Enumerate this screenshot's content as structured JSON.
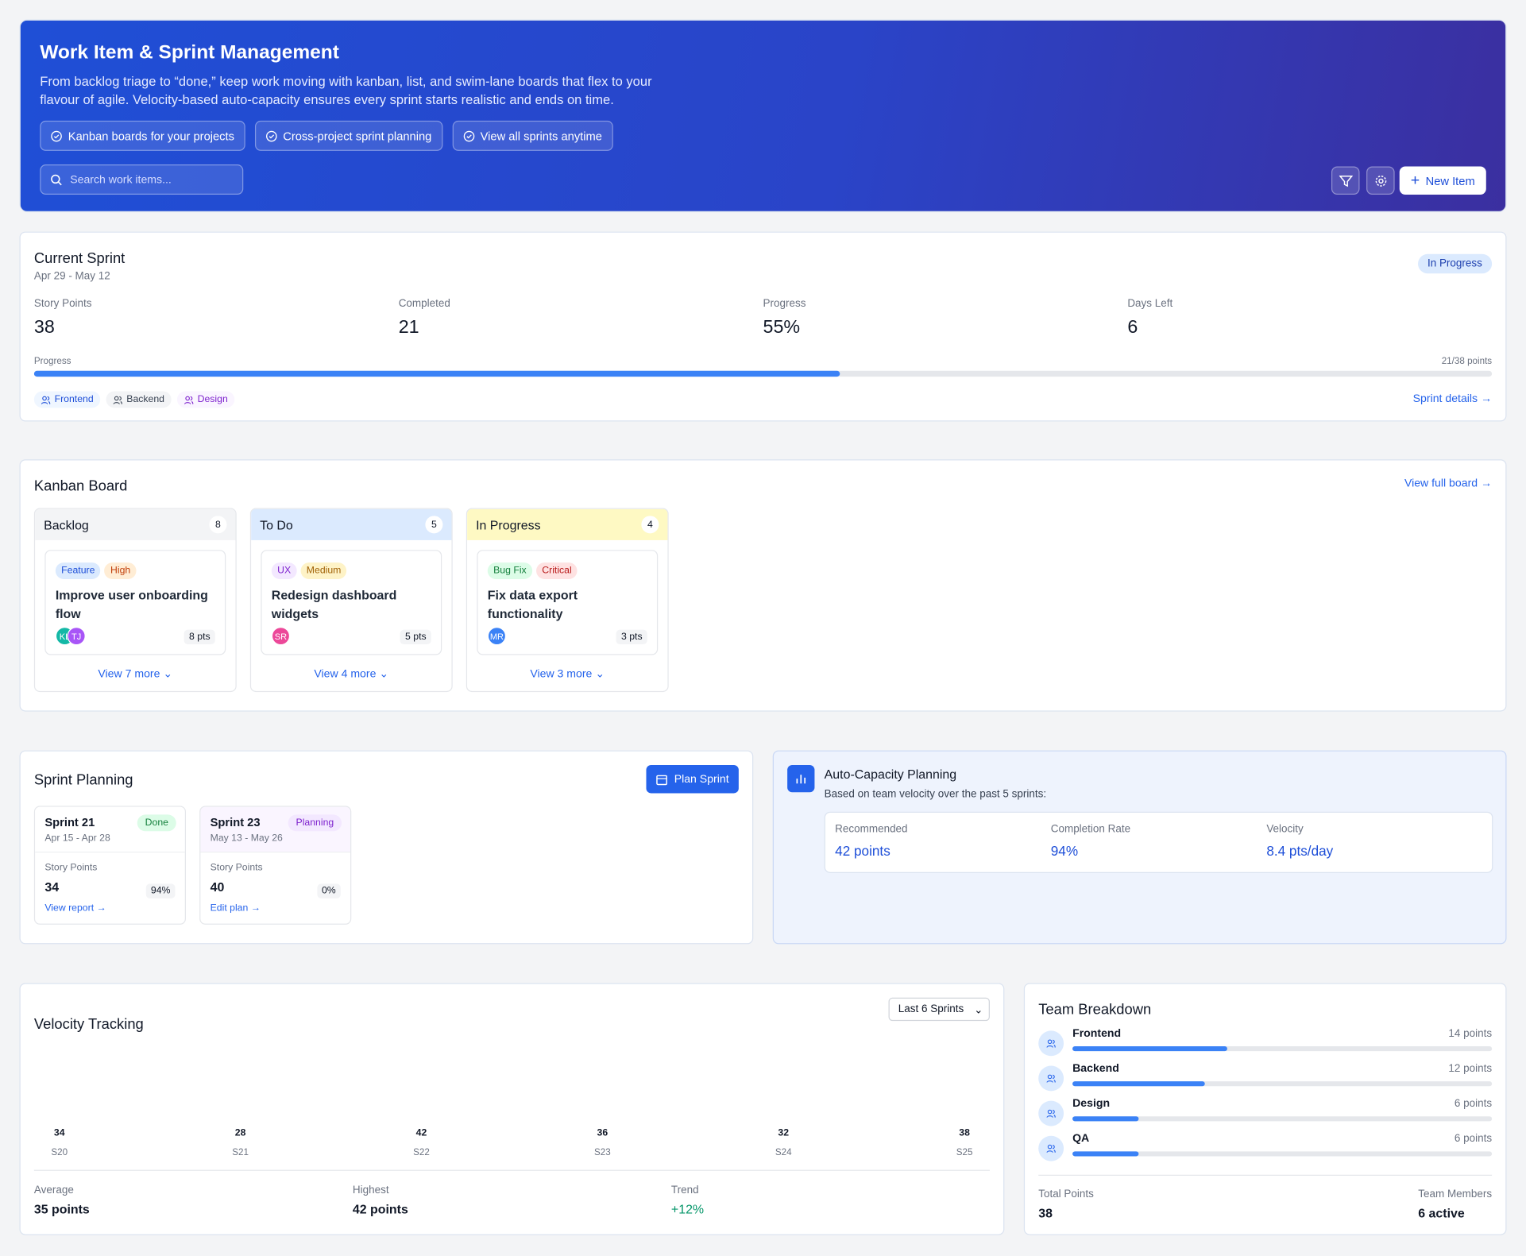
{
  "header": {
    "title": "Work Item & Sprint Management",
    "description": "From backlog triage to “done,” keep work moving with kanban, list, and swim-lane boards that flex to your flavour of agile. Velocity-based auto-capacity ensures every sprint starts realistic and ends on time.",
    "features": [
      "Kanban boards for your projects",
      "Cross-project sprint planning",
      "View all sprints anytime"
    ],
    "search_placeholder": "Search work items...",
    "new_item": "New Item"
  },
  "current_sprint": {
    "title": "Current Sprint",
    "dates": "Apr 29 - May 12",
    "status": "In Progress",
    "stats": [
      {
        "label": "Story Points",
        "value": 38
      },
      {
        "label": "Completed",
        "value": 21
      },
      {
        "label": "Progress",
        "value": "55%"
      },
      {
        "label": "Days Left",
        "value": 6
      }
    ],
    "progress_label": "Progress",
    "points_label": "21/38 points",
    "teams": [
      "Frontend",
      "Backend",
      "Design"
    ],
    "link": "Sprint details"
  },
  "kanban": {
    "title": "Kanban Board",
    "link": "View full board",
    "columns": [
      {
        "name": "Backlog",
        "count": 8,
        "card": {
          "tags": [
            "Feature",
            "High"
          ],
          "title": "Improve user onboarding flow",
          "avatars": [
            "KL",
            "TJ"
          ],
          "points": "8 pts"
        },
        "more": "View 7 more"
      },
      {
        "name": "To Do",
        "count": 5,
        "card": {
          "tags": [
            "UX",
            "Medium"
          ],
          "title": "Redesign dashboard widgets",
          "avatars": [
            "SR"
          ],
          "points": "5 pts"
        },
        "more": "View 4 more"
      },
      {
        "name": "In Progress",
        "count": 4,
        "card": {
          "tags": [
            "Bug Fix",
            "Critical"
          ],
          "title": "Fix data export functionality",
          "avatars": [
            "MR"
          ],
          "points": "3 pts"
        },
        "more": "View 3 more"
      }
    ]
  },
  "sprint_planning": {
    "title": "Sprint Planning",
    "button": "Plan Sprint",
    "sprints": [
      {
        "name": "Sprint 21",
        "status": "Done",
        "dates": "Apr 15 - Apr 28",
        "points_label": "Story Points",
        "points": 34,
        "completion": "94%",
        "link": "View report"
      },
      {
        "name": "Sprint 23",
        "status": "Planning",
        "dates": "May 13 - May 26",
        "points_label": "Story Points",
        "points": 40,
        "completion": "0%",
        "link": "Edit plan"
      }
    ]
  },
  "auto_capacity": {
    "title": "Auto-Capacity Planning",
    "subtitle": "Based on team velocity over the past 5 sprints:",
    "metrics": [
      {
        "label": "Recommended",
        "value": "42 points"
      },
      {
        "label": "Completion Rate",
        "value": "94%"
      },
      {
        "label": "Velocity",
        "value": "8.4 pts/day"
      }
    ]
  },
  "velocity": {
    "title": "Velocity Tracking",
    "range": "Last 6 Sprints",
    "sprints": [
      "S20",
      "S21",
      "S22",
      "S23",
      "S24",
      "S25"
    ],
    "values": [
      34,
      28,
      42,
      36,
      32,
      38
    ],
    "summary": [
      {
        "label": "Average",
        "value": "35 points"
      },
      {
        "label": "Highest",
        "value": "42 points"
      },
      {
        "label": "Trend",
        "value": "+12%"
      }
    ]
  },
  "team": {
    "title": "Team Breakdown",
    "members": [
      {
        "name": "Frontend",
        "points": 14,
        "label": "14 points"
      },
      {
        "name": "Backend",
        "points": 12,
        "label": "12 points"
      },
      {
        "name": "Design",
        "points": 6,
        "label": "6 points"
      },
      {
        "name": "QA",
        "points": 6,
        "label": "6 points"
      }
    ],
    "total_label": "Total Points",
    "total": 38,
    "members_label": "Team Members",
    "active": "6 active"
  }
}
